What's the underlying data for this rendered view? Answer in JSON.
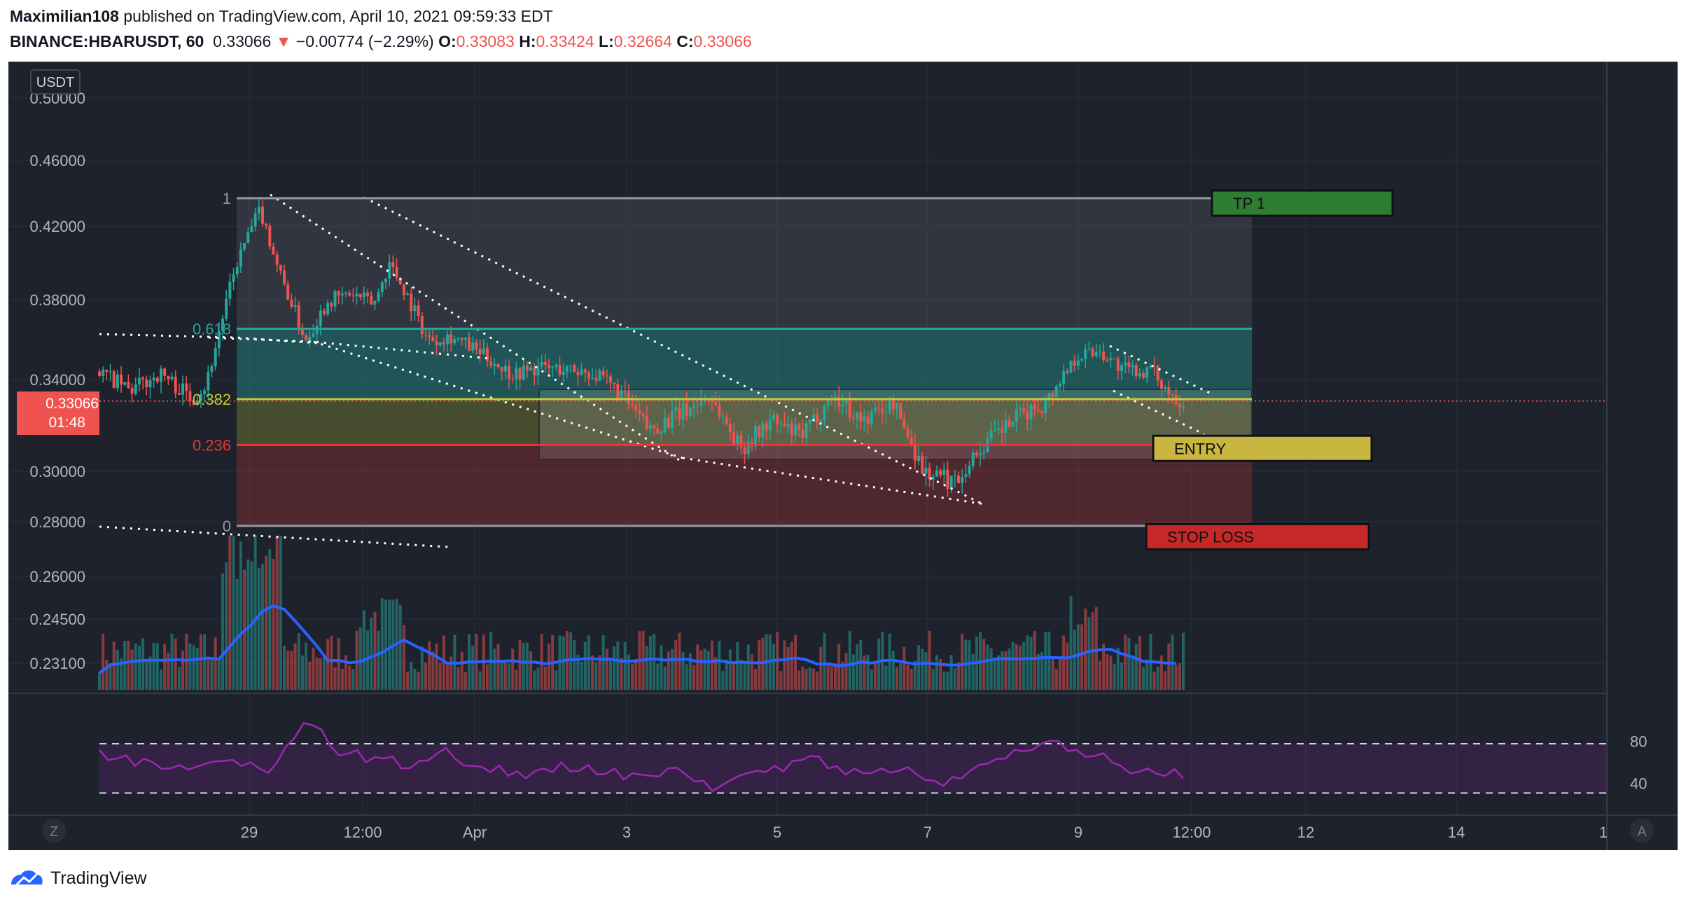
{
  "header": {
    "author": "Maximilian108",
    "published_text": "published on TradingView.com, April 10, 2021 09:59:33 EDT",
    "symbol": "BINANCE:HBARUSDT, 60",
    "last": "0.33066",
    "change_arrow": "▼",
    "change": "−0.00774 (−2.29%)",
    "o_label": "O:",
    "o_value": "0.33083",
    "h_label": "H:",
    "h_value": "0.33424",
    "l_label": "L:",
    "l_value": "0.32664",
    "c_label": "C:",
    "c_value": "0.33066"
  },
  "footer": {
    "brand": "TradingView",
    "logo_icon": "tradingview-logo-icon"
  },
  "colors": {
    "background": "#1e222d",
    "grid": "#2a2e39",
    "text": "#b2b5be",
    "up": "#26a69a",
    "down": "#ef5350",
    "volume_ma": "#2962ff",
    "rsi": "#9c27b0",
    "fib_618": "#26a69a",
    "fib_382": "#c0ca33",
    "fib_236": "#e53935"
  },
  "chart_data": {
    "type": "candlestick",
    "currency_badge": "USDT",
    "price_scale_ticks": [
      "0.50000",
      "0.46000",
      "0.42000",
      "0.38000",
      "0.34000",
      "0.30000",
      "0.28000",
      "0.26000",
      "0.24500",
      "0.23100"
    ],
    "time_ticks": [
      "29",
      "12:00",
      "Apr",
      "3",
      "5",
      "7",
      "9",
      "12:00",
      "12",
      "14",
      "1"
    ],
    "last_price_label": {
      "price": "0.33066",
      "countdown": "01:48"
    },
    "price_path": [
      [
        0,
        0.344
      ],
      [
        4,
        0.335
      ],
      [
        8,
        0.343
      ],
      [
        12,
        0.332
      ],
      [
        14,
        0.338
      ],
      [
        18,
        0.4
      ],
      [
        21,
        0.43
      ],
      [
        24,
        0.39
      ],
      [
        27,
        0.36
      ],
      [
        30,
        0.38
      ],
      [
        33,
        0.383
      ],
      [
        36,
        0.378
      ],
      [
        38,
        0.4
      ],
      [
        40,
        0.385
      ],
      [
        43,
        0.36
      ],
      [
        46,
        0.362
      ],
      [
        50,
        0.353
      ],
      [
        54,
        0.343
      ],
      [
        58,
        0.346
      ],
      [
        64,
        0.344
      ],
      [
        68,
        0.335
      ],
      [
        72,
        0.318
      ],
      [
        76,
        0.325
      ],
      [
        80,
        0.333
      ],
      [
        84,
        0.31
      ],
      [
        88,
        0.322
      ],
      [
        92,
        0.315
      ],
      [
        96,
        0.333
      ],
      [
        100,
        0.322
      ],
      [
        104,
        0.33
      ],
      [
        108,
        0.3
      ],
      [
        112,
        0.296
      ],
      [
        116,
        0.312
      ],
      [
        120,
        0.323
      ],
      [
        124,
        0.33
      ],
      [
        128,
        0.352
      ],
      [
        131,
        0.355
      ],
      [
        134,
        0.345
      ],
      [
        138,
        0.344
      ],
      [
        140,
        0.335
      ],
      [
        142,
        0.33066
      ]
    ],
    "fibonacci": {
      "levels": [
        {
          "label": "1",
          "price": 0.437,
          "color": "#9598a1"
        },
        {
          "label": "0.618",
          "price": 0.3655,
          "color": "#26a69a"
        },
        {
          "label": "0.382",
          "price": 0.3315,
          "color": "#c0ca33"
        },
        {
          "label": "0.236",
          "price": 0.3115,
          "color": "#e53935"
        },
        {
          "label": "0",
          "price": 0.2785,
          "color": "#9598a1"
        }
      ]
    },
    "annotations": [
      {
        "label": "TP 1",
        "price": 0.434,
        "color": "#2e7d32"
      },
      {
        "label": "ENTRY",
        "price": 0.31,
        "color": "#c9b640"
      },
      {
        "label": "STOP LOSS",
        "price": 0.2745,
        "color": "#c62828"
      }
    ],
    "rsi": {
      "levels": [
        "80",
        "40"
      ],
      "values": [
        65,
        58,
        52,
        55,
        50,
        49,
        54,
        56,
        52,
        50,
        55,
        75,
        85,
        68,
        62,
        55,
        58,
        50,
        56,
        62,
        58,
        52,
        47,
        44,
        42,
        50,
        55,
        48,
        45,
        50,
        46,
        44,
        50,
        45,
        40,
        36,
        44,
        48,
        52,
        56,
        60,
        50,
        45,
        46,
        50,
        48,
        45,
        40,
        43,
        48,
        54,
        58,
        64,
        70,
        72,
        65,
        60,
        55,
        46,
        50,
        44,
        42
      ]
    }
  }
}
